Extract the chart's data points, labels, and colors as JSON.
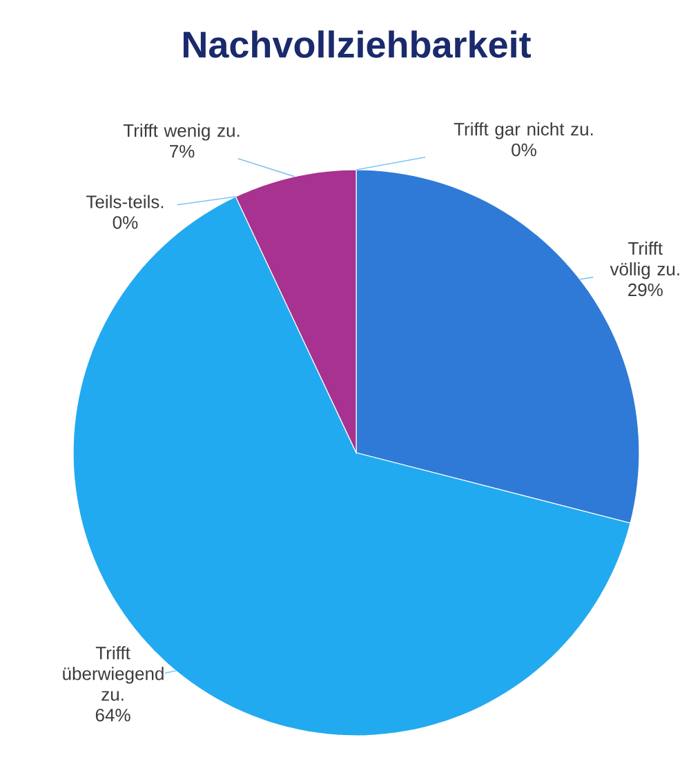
{
  "chart_data": {
    "type": "pie",
    "title": "Nachvollziehbarkeit",
    "categories": [
      "Trifft völlig zu.",
      "Trifft überwiegend zu.",
      "Teils-teils.",
      "Trifft wenig zu.",
      "Trifft gar nicht zu."
    ],
    "values": [
      29,
      64,
      0,
      7,
      0
    ],
    "value_labels": [
      "29%",
      "64%",
      "0%",
      "7%",
      "0%"
    ],
    "colors": [
      "#2f7ad6",
      "#22aaf0",
      null,
      "#a8328f",
      null
    ]
  }
}
